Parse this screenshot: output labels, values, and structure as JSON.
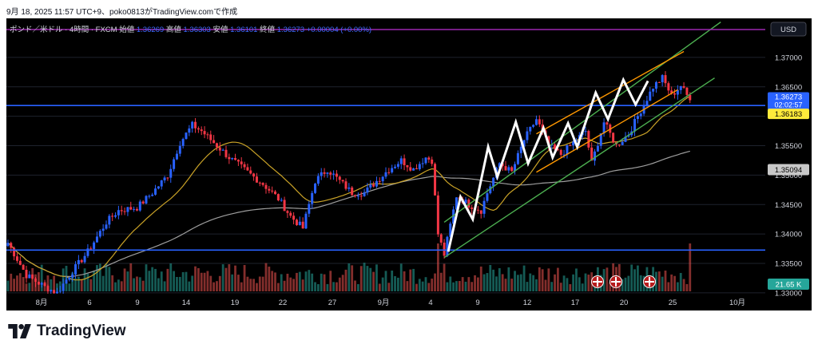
{
  "header": {
    "caption": "9月 18, 2025 11:57 UTC+9、poko0813がTradingView.comで作成"
  },
  "legend": {
    "symbol": "ポンド／米ドル · 4時間 · FXCM",
    "open_label": "始値",
    "open": "1.36269",
    "high_label": "高値",
    "high": "1.36303",
    "low_label": "安値",
    "low": "1.36101",
    "close_label": "終値",
    "close": "1.36273",
    "change": "+0.00004 (+0.00%)"
  },
  "currency_button": "USD",
  "price_axis": {
    "ticks": [
      "1.37000",
      "1.36500",
      "1.35500",
      "1.35000",
      "1.34500",
      "1.34000",
      "1.33500",
      "1.33000"
    ],
    "current_price": "1.36273",
    "countdown": "02:02:57",
    "hline_upper_label": "1.36183",
    "ma_label": "1.35094",
    "volume_label": "21.65 K"
  },
  "time_axis": [
    "8月",
    "6",
    "9",
    "14",
    "19",
    "22",
    "27",
    "9月",
    "4",
    "9",
    "12",
    "17",
    "20",
    "25",
    "10月"
  ],
  "logo_text": "TradingView",
  "colors": {
    "up": "#2962ff",
    "down": "#f23645",
    "ma_short": "#c9a227",
    "ma_long": "#9e9e9e",
    "hline": "#2962ff",
    "channel_green": "#4caf50",
    "channel_orange": "#ff9800",
    "zigzag": "#ffffff",
    "header_line": "#9c27b0",
    "vol_up": "#26a69a",
    "vol_down": "#ef5350"
  },
  "chart_data": {
    "type": "candlestick",
    "symbol": "GBP/USD",
    "timeframe": "4H",
    "ylim": [
      1.3285,
      1.375
    ],
    "horizontal_lines": [
      1.36183,
      1.33727
    ],
    "current_price": 1.36273,
    "ma_short_end": 1.3618,
    "ma_long_end": 1.35094,
    "closes_anchors": [
      [
        0,
        1.3385
      ],
      [
        6,
        1.333
      ],
      [
        12,
        1.331
      ],
      [
        16,
        1.33
      ],
      [
        20,
        1.333
      ],
      [
        26,
        1.337
      ],
      [
        32,
        1.342
      ],
      [
        36,
        1.344
      ],
      [
        42,
        1.3445
      ],
      [
        47,
        1.347
      ],
      [
        52,
        1.35
      ],
      [
        56,
        1.3555
      ],
      [
        60,
        1.3585
      ],
      [
        63,
        1.3575
      ],
      [
        66,
        1.356
      ],
      [
        72,
        1.353
      ],
      [
        78,
        1.3505
      ],
      [
        83,
        1.3485
      ],
      [
        88,
        1.346
      ],
      [
        92,
        1.343
      ],
      [
        96,
        1.341
      ],
      [
        100,
        1.349
      ],
      [
        104,
        1.351
      ],
      [
        108,
        1.349
      ],
      [
        112,
        1.347
      ],
      [
        116,
        1.347
      ],
      [
        120,
        1.349
      ],
      [
        124,
        1.351
      ],
      [
        128,
        1.3525
      ],
      [
        132,
        1.351
      ],
      [
        136,
        1.353
      ],
      [
        138,
        1.3525
      ],
      [
        140,
        1.34
      ],
      [
        142,
        1.3365
      ],
      [
        144,
        1.3415
      ],
      [
        146,
        1.3465
      ],
      [
        150,
        1.345
      ],
      [
        154,
        1.344
      ],
      [
        156,
        1.347
      ],
      [
        160,
        1.352
      ],
      [
        164,
        1.3505
      ],
      [
        168,
        1.356
      ],
      [
        172,
        1.3595
      ],
      [
        176,
        1.355
      ],
      [
        180,
        1.3535
      ],
      [
        184,
        1.3555
      ],
      [
        188,
        1.3575
      ],
      [
        190,
        1.352
      ],
      [
        194,
        1.359
      ],
      [
        198,
        1.355
      ],
      [
        202,
        1.357
      ],
      [
        206,
        1.361
      ],
      [
        210,
        1.365
      ],
      [
        213,
        1.3665
      ],
      [
        216,
        1.3635
      ],
      [
        219,
        1.3652
      ],
      [
        222,
        1.3627
      ]
    ],
    "volume_spikes": [
      {
        "index": 140,
        "value": 1.0
      },
      {
        "index": 222,
        "value": 1.0
      }
    ]
  }
}
